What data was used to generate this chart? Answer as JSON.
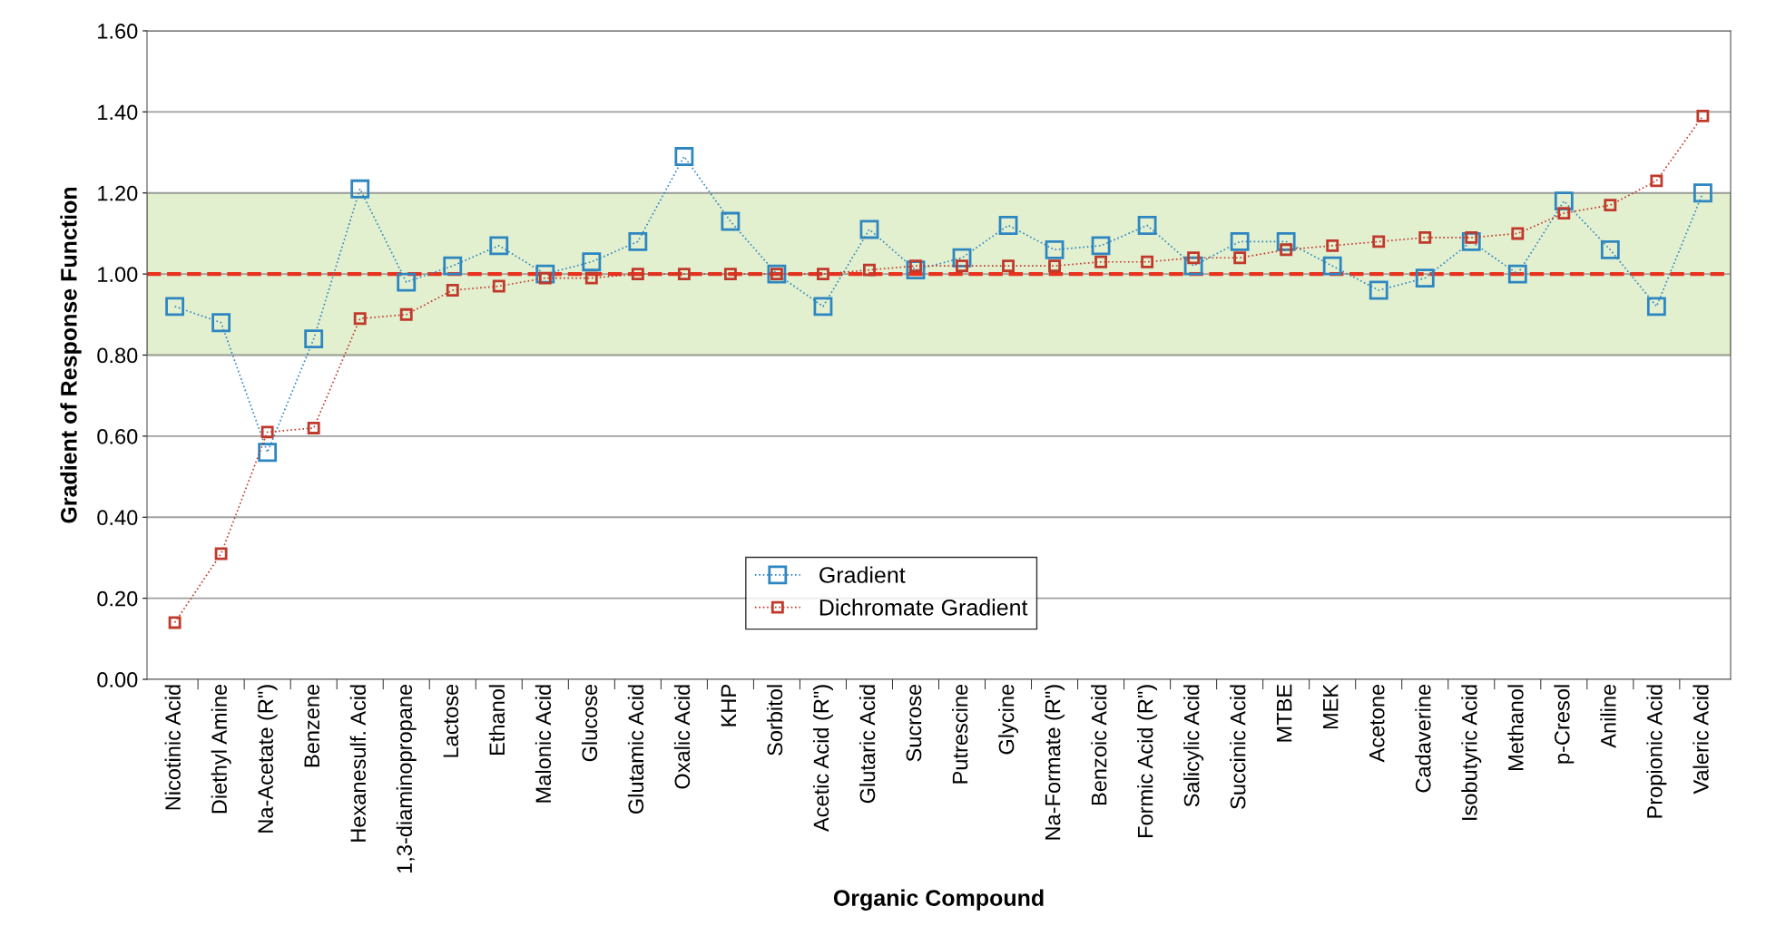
{
  "chart_data": {
    "type": "line",
    "xlabel": "Organic Compound",
    "ylabel": "Gradient of Response Function",
    "categories": [
      "Nicotinic Acid",
      "Diethyl Amine",
      "Na-Acetate (R\")",
      "Benzene",
      "Hexanesulf. Acid",
      "1,3-diaminopropane",
      "Lactose",
      "Ethanol",
      "Malonic Acid",
      "Glucose",
      "Glutamic Acid",
      "Oxalic Acid",
      "KHP",
      "Sorbitol",
      "Acetic Acid (R\")",
      "Glutaric Acid",
      "Sucrose",
      "Putrescine",
      "Glycine",
      "Na-Formate (R\")",
      "Benzoic Acid",
      "Formic Acid (R\")",
      "Salicylic Acid",
      "Succinic Acid",
      "MTBE",
      "MEK",
      "Acetone",
      "Cadaverine",
      "Isobutyric Acid",
      "Methanol",
      "p-Cresol",
      "Aniline",
      "Propionic Acid",
      "Valeric Acid"
    ],
    "series": [
      {
        "name": "Gradient",
        "color": "#2e86c1",
        "values": [
          0.92,
          0.88,
          0.56,
          0.84,
          1.21,
          0.98,
          1.02,
          1.07,
          1.0,
          1.03,
          1.08,
          1.29,
          1.13,
          1.0,
          0.92,
          1.11,
          1.01,
          1.04,
          1.12,
          1.06,
          1.07,
          1.12,
          1.02,
          1.08,
          1.08,
          1.02,
          0.96,
          0.99,
          1.08,
          1.0,
          1.18,
          1.06,
          0.92,
          1.2
        ]
      },
      {
        "name": "Dichromate Gradient",
        "color": "#c0392b",
        "values": [
          0.14,
          0.31,
          0.61,
          0.62,
          0.89,
          0.9,
          0.96,
          0.97,
          0.99,
          0.99,
          1.0,
          1.0,
          1.0,
          1.0,
          1.0,
          1.01,
          1.02,
          1.02,
          1.02,
          1.02,
          1.03,
          1.03,
          1.04,
          1.04,
          1.06,
          1.07,
          1.08,
          1.09,
          1.09,
          1.1,
          1.15,
          1.17,
          1.23,
          1.39
        ]
      }
    ],
    "ylim": [
      0,
      1.6
    ],
    "yticks": [
      {
        "value": 0,
        "label": "0.00"
      },
      {
        "value": 0.2,
        "label": "0.20"
      },
      {
        "value": 0.4,
        "label": "0.40"
      },
      {
        "value": 0.6,
        "label": "0.60"
      },
      {
        "value": 0.8,
        "label": "0.80"
      },
      {
        "value": 1.0,
        "label": "1.00"
      },
      {
        "value": 1.2,
        "label": "1.20"
      },
      {
        "value": 1.4,
        "label": "1.40"
      },
      {
        "value": 1.6,
        "label": "1.60"
      }
    ],
    "ref_lines": [
      {
        "axis": "y",
        "value": 1.0,
        "color": "#e8321e",
        "line_style": "dashed"
      }
    ],
    "bands": [
      {
        "axis": "y",
        "from": 0.8,
        "to": 1.2,
        "color": "#e2f0d0"
      }
    ],
    "grid": "y",
    "legend": "bottom",
    "marker": "square",
    "line_style": "dotted"
  }
}
